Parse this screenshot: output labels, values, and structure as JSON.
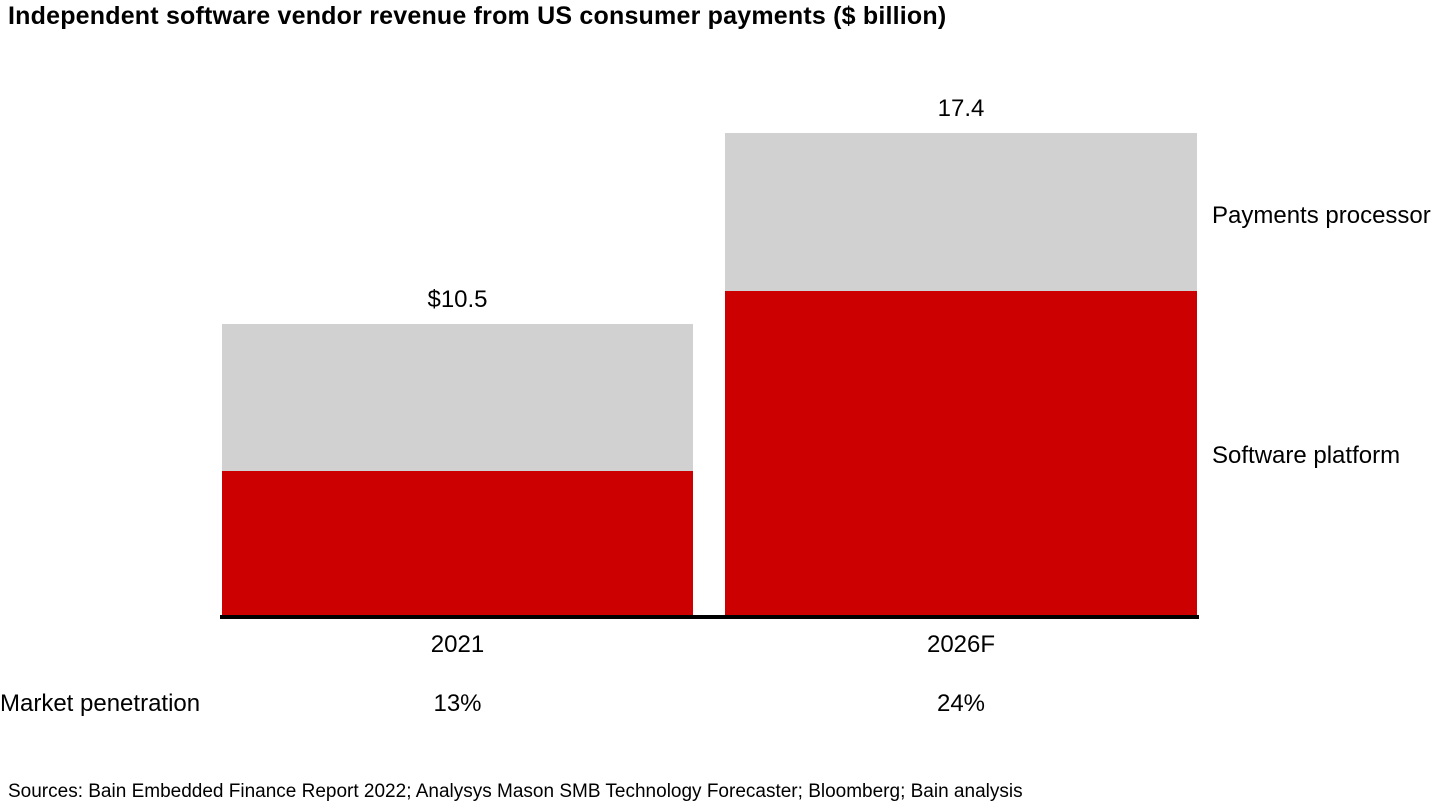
{
  "chart_data": {
    "type": "bar",
    "stacked": true,
    "title": "Independent software vendor revenue from US consumer payments ($ billion)",
    "unit": "$ billion",
    "categories": [
      "2021",
      "2026F"
    ],
    "series": [
      {
        "name": "Software platform",
        "color": "#cc0000",
        "values": [
          5.2,
          11.7
        ]
      },
      {
        "name": "Payments processor",
        "color": "#d1d1d1",
        "values": [
          5.3,
          5.7
        ]
      }
    ],
    "totals": [
      10.5,
      17.4
    ],
    "total_labels": [
      "$10.5",
      "17.4"
    ],
    "ylim": [
      0,
      17.4
    ],
    "grid": false,
    "legend_position": "right",
    "market_penetration": {
      "label": "Market penetration",
      "values": [
        "13%",
        "24%"
      ]
    }
  },
  "footer": {
    "sources": "Sources: Bain Embedded Finance Report 2022; Analysys Mason SMB Technology Forecaster; Bloomberg; Bain analysis"
  }
}
